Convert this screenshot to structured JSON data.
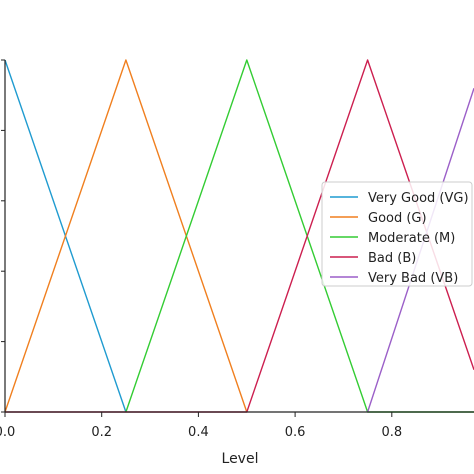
{
  "chart_data": {
    "type": "line",
    "xlabel": "Level",
    "ylabel": "",
    "xlim": [
      0.0,
      0.97
    ],
    "ylim": [
      0.0,
      1.0
    ],
    "x_ticks": [
      "0.0",
      "0.2",
      "0.4",
      "0.6",
      "0.8"
    ],
    "x_tick_values": [
      0.0,
      0.2,
      0.4,
      0.6,
      0.8
    ],
    "y_tick_values": [
      0.0,
      0.2,
      0.4,
      0.6,
      0.8,
      1.0
    ],
    "legend_position": "right",
    "grid": false,
    "series": [
      {
        "name": "Very Good (VG)",
        "color": "#1f9bd0",
        "x": [
          0.0,
          0.25
        ],
        "y": [
          1.0,
          0.0
        ]
      },
      {
        "name": "Good (G)",
        "color": "#f07f1f",
        "x": [
          0.0,
          0.25,
          0.5
        ],
        "y": [
          0.0,
          1.0,
          0.0
        ]
      },
      {
        "name": "Moderate (M)",
        "color": "#33cc33",
        "x": [
          0.25,
          0.5,
          0.75,
          0.97
        ],
        "y": [
          0.0,
          1.0,
          0.0,
          0.0
        ]
      },
      {
        "name": "Bad (B)",
        "color": "#cc1f4f",
        "x": [
          0.0,
          0.5,
          0.75,
          0.97
        ],
        "y": [
          0.0,
          0.0,
          1.0,
          0.12
        ]
      },
      {
        "name": "Very Bad (VB)",
        "color": "#9b5fc8",
        "x": [
          0.75,
          0.97
        ],
        "y": [
          0.0,
          0.92
        ]
      }
    ]
  }
}
